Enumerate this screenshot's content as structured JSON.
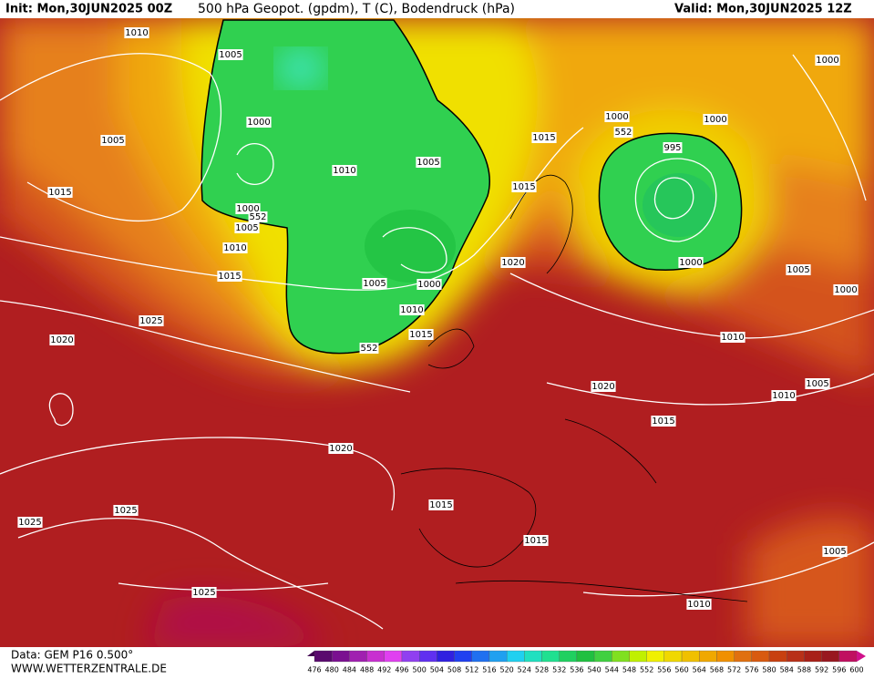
{
  "header": {
    "init": "Init: Mon,30JUN2025 00Z",
    "title": "500 hPa Geopot. (gpdm), T (C), Bodendruck (hPa)",
    "valid": "Valid: Mon,30JUN2025 12Z"
  },
  "contour_labels": [
    "1010",
    "1005",
    "1000",
    "1005",
    "1015",
    "1010",
    "1005",
    "1000",
    "552",
    "1005",
    "1010",
    "1015",
    "1005",
    "1000",
    "1010",
    "1015",
    "552",
    "1025",
    "1020",
    "1015",
    "552",
    "1000",
    "1000",
    "995",
    "1000",
    "1015",
    "1020",
    "1000",
    "1005",
    "1000",
    "1010",
    "1020",
    "1010",
    "1005",
    "1015",
    "1020",
    "1015",
    "1025",
    "1025",
    "1015",
    "1005",
    "1025",
    "1010"
  ],
  "footer": {
    "data": "Data: GEM P16 0.500°",
    "site": "WWW.WETTERZENTRALE.DE"
  },
  "colorbar": {
    "levels": [
      476,
      480,
      484,
      488,
      492,
      496,
      500,
      504,
      508,
      512,
      516,
      520,
      524,
      528,
      532,
      536,
      540,
      544,
      548,
      552,
      556,
      560,
      564,
      568,
      572,
      576,
      580,
      584,
      588,
      592,
      596,
      600
    ],
    "colors": [
      "#5a0a6e",
      "#7a1090",
      "#a020b0",
      "#c830d0",
      "#e040f0",
      "#9040f0",
      "#6030f0",
      "#3020e0",
      "#2040f0",
      "#2070f0",
      "#20a0f0",
      "#20d0f0",
      "#20e0c0",
      "#20e090",
      "#20d060",
      "#20c040",
      "#40d040",
      "#80e020",
      "#c0f000",
      "#f0f000",
      "#f0d800",
      "#f0c000",
      "#f0a800",
      "#f09000",
      "#e07010",
      "#d85a10",
      "#c84010",
      "#b83018",
      "#a82018",
      "#981820",
      "#c01060"
    ]
  }
}
